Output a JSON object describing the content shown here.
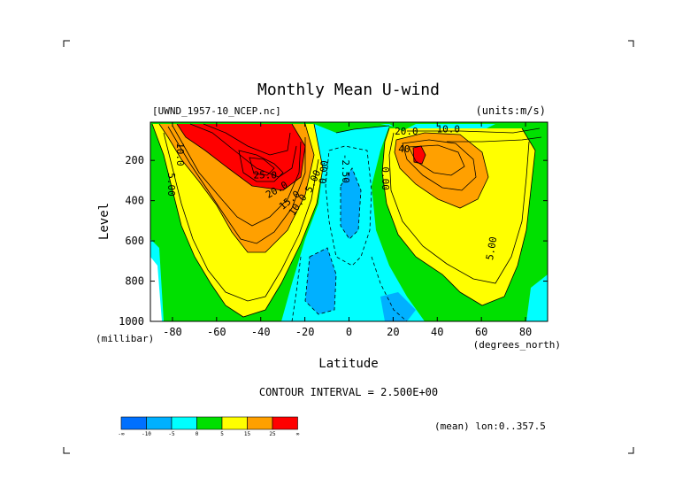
{
  "chart_data": {
    "type": "contour",
    "title": "Monthly Mean U-wind",
    "dataset": "[UWND_1957-10_NCEP.nc]",
    "units": "(units:m/s)",
    "xlabel": "Latitude",
    "x_units": "(degrees_north)",
    "ylabel": "Level",
    "y_units": "(millibar)",
    "xlim": [
      -90,
      90
    ],
    "ylim": [
      1000,
      10
    ],
    "x_ticks": [
      -80,
      -60,
      -40,
      -20,
      0,
      20,
      40,
      60,
      80
    ],
    "y_ticks": [
      200,
      400,
      600,
      800,
      1000
    ],
    "contour_interval_text": "CONTOUR INTERVAL = 2.500E+00",
    "subset_note": "(mean) lon:0..357.5",
    "color_levels": [
      {
        "color": "#0070ff"
      },
      {
        "color": "#00b0ff"
      },
      {
        "color": "#00ffff"
      },
      {
        "color": "#00e000"
      },
      {
        "color": "#ffff00"
      },
      {
        "color": "#ffa000"
      },
      {
        "color": "#ff0000"
      }
    ],
    "colorbar_labels": [
      "-∞",
      "-10",
      "-5",
      "0",
      "5",
      "15",
      "25",
      "∞"
    ],
    "contour_labels": [
      {
        "text": "10.0",
        "lat": -78,
        "level": 170,
        "rot": 90
      },
      {
        "text": "5.00",
        "lat": -82,
        "level": 320,
        "rot": 90
      },
      {
        "text": "25.0",
        "lat": -38,
        "level": 290,
        "rot": 0
      },
      {
        "text": "20.0",
        "lat": -32,
        "level": 360,
        "rot": -30
      },
      {
        "text": "15.0",
        "lat": -26,
        "level": 410,
        "rot": -40
      },
      {
        "text": "10.0",
        "lat": -22,
        "level": 430,
        "rot": -55
      },
      {
        "text": "5.00",
        "lat": -15,
        "level": 310,
        "rot": -65
      },
      {
        "text": "0.00",
        "lat": -10,
        "level": 260,
        "rot": -85
      },
      {
        "text": "-2.50",
        "lat": -3,
        "level": 240,
        "rot": 90
      },
      {
        "text": "0.00",
        "lat": 15,
        "level": 290,
        "rot": 90
      },
      {
        "text": "10.0",
        "lat": 45,
        "level": 60,
        "rot": 0
      },
      {
        "text": "20.0",
        "lat": 26,
        "level": 72,
        "rot": 0
      },
      {
        "text": "40",
        "lat": 25,
        "level": 160,
        "rot": 0
      },
      {
        "text": "5.00",
        "lat": 66,
        "level": 640,
        "rot": -80
      }
    ]
  }
}
